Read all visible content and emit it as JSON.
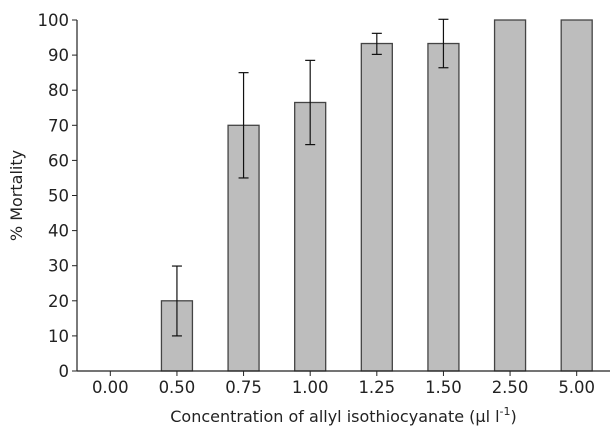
{
  "chart_data": {
    "type": "bar",
    "categories": [
      "0.00",
      "0.50",
      "0.75",
      "1.00",
      "1.25",
      "1.50",
      "2.50",
      "5.00"
    ],
    "values": [
      0,
      20,
      70,
      76.5,
      93.3,
      93.3,
      100,
      100
    ],
    "error_low": [
      null,
      10,
      55,
      64.5,
      90.2,
      86.4,
      null,
      null
    ],
    "error_high": [
      null,
      29.9,
      85,
      88.5,
      96.2,
      100.2,
      null,
      null
    ],
    "ylabel": "% Mortality",
    "xlabel": "Concentration of allyl isothiocyanate (µl l",
    "xlabel_sup": "-1",
    "xlabel_close": ")",
    "ylim": [
      0,
      100
    ],
    "yticks": [
      "0",
      "10",
      "20",
      "30",
      "40",
      "50",
      "60",
      "70",
      "80",
      "90",
      "100"
    ],
    "grid": false,
    "bar_color": "#bdbdbd"
  }
}
